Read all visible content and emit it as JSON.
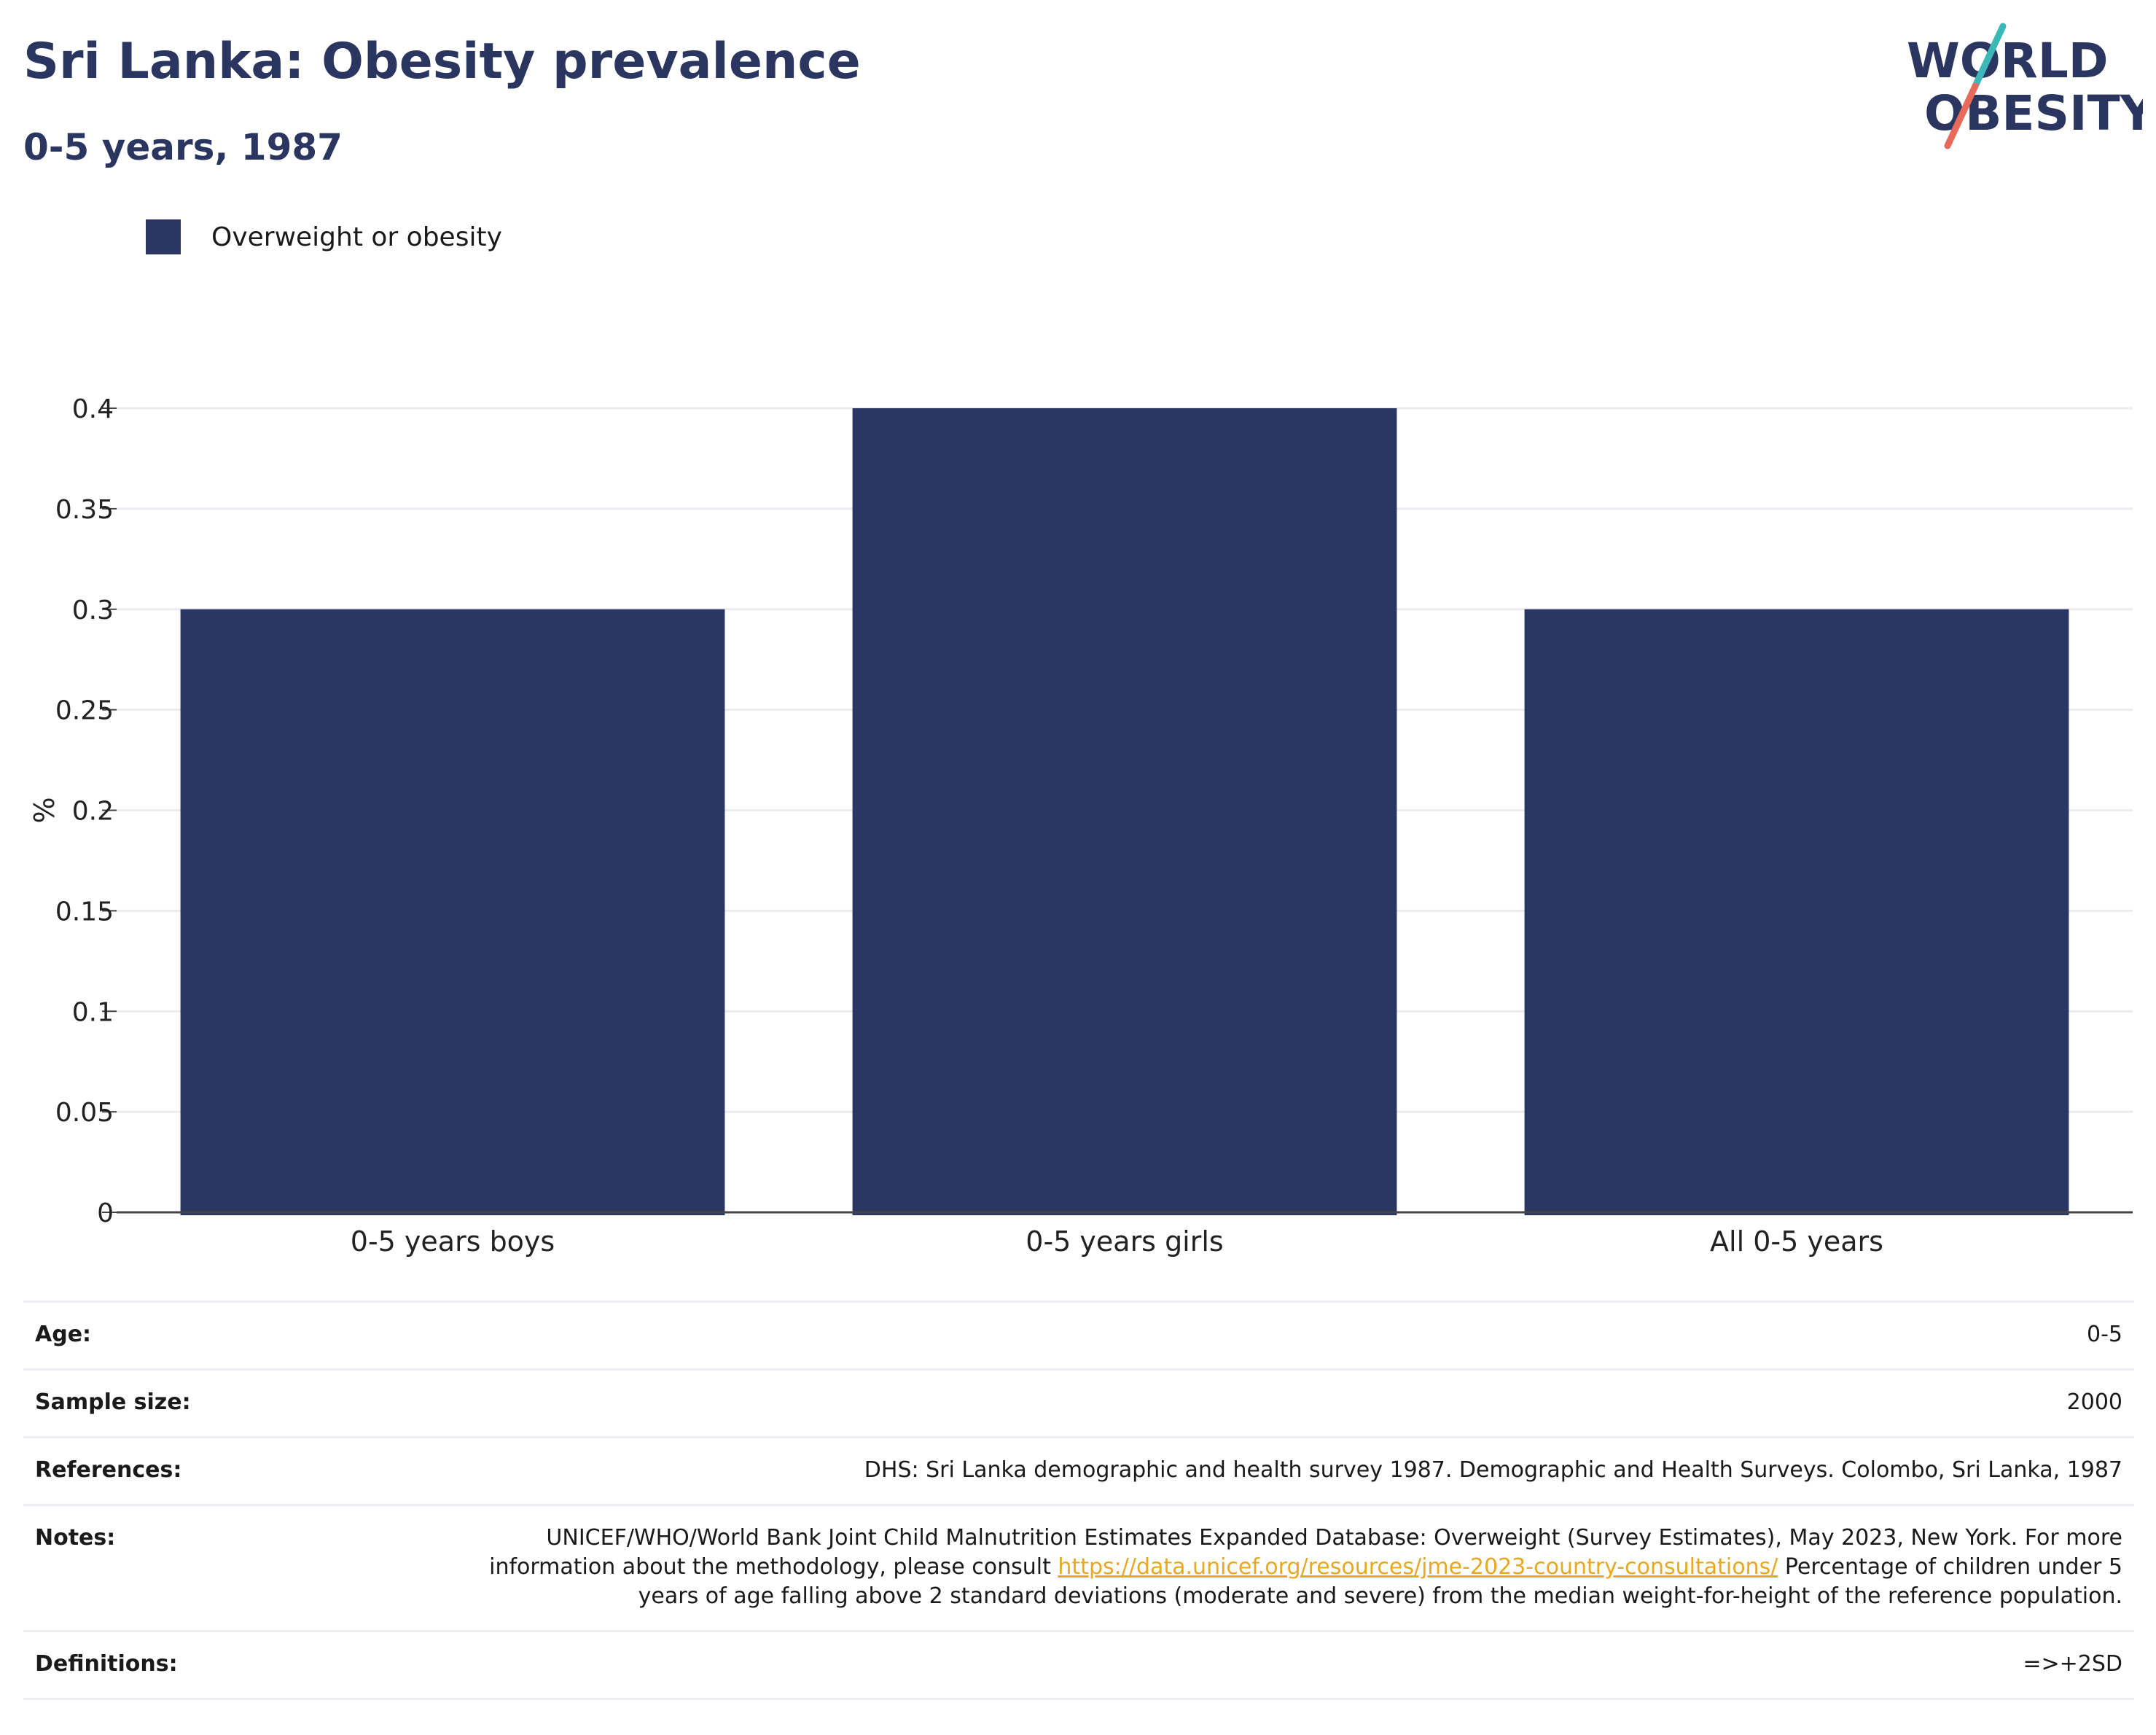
{
  "header": {
    "title": "Sri Lanka: Obesity prevalence",
    "subtitle": "0-5 years, 1987"
  },
  "logo": {
    "line1": "WORLD",
    "line2": "OBESITY",
    "text_color": "#2a3560",
    "slash_top_color": "#3bb8b8",
    "slash_bottom_color": "#e86a5a"
  },
  "chart_data": {
    "type": "bar",
    "categories": [
      "0-5 years boys",
      "0-5 years girls",
      "All 0-5 years"
    ],
    "series": [
      {
        "name": "Overweight or obesity",
        "values": [
          0.3,
          0.4,
          0.3
        ],
        "color": "#2a3762"
      }
    ],
    "xlabel": "",
    "ylabel": "%",
    "ylim": [
      0,
      0.4
    ],
    "yticks": [
      0,
      0.05,
      0.1,
      0.15,
      0.2,
      0.25,
      0.3,
      0.35,
      0.4
    ],
    "grid": true,
    "legend": "top-left"
  },
  "info": {
    "age": {
      "label": "Age:",
      "value": "0-5"
    },
    "sample_size": {
      "label": "Sample size:",
      "value": "2000"
    },
    "references": {
      "label": "References:",
      "value": "DHS: Sri Lanka demographic and health survey 1987. Demographic and Health Surveys. Colombo, Sri Lanka, 1987"
    },
    "notes": {
      "label": "Notes:",
      "text_before": "UNICEF/WHO/World Bank Joint Child Malnutrition Estimates Expanded Database: Overweight (Survey Estimates), May 2023, New York. For more information about the methodology, please consult ",
      "link": "https://data.unicef.org/resources/jme-2023-country-consultations/",
      "text_after": " Percentage of children under 5 years of age falling above 2 standard deviations (moderate and severe) from the median weight-for-height of the reference population."
    },
    "definitions": {
      "label": "Definitions:",
      "value": "=>+2SD"
    }
  }
}
